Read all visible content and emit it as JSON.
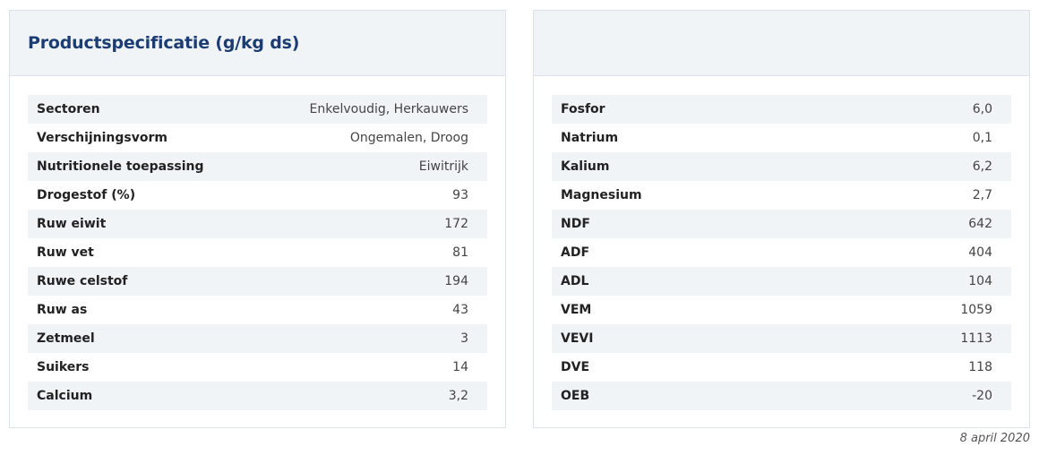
{
  "left_panel": {
    "title": "Productspecificatie (g/kg ds)",
    "rows": [
      {
        "label": "Sectoren",
        "value": "Enkelvoudig, Herkauwers"
      },
      {
        "label": "Verschijningsvorm",
        "value": "Ongemalen, Droog"
      },
      {
        "label": "Nutritionele toepassing",
        "value": "Eiwitrijk"
      },
      {
        "label": "Drogestof (%)",
        "value": "93"
      },
      {
        "label": "Ruw eiwit",
        "value": "172"
      },
      {
        "label": "Ruw vet",
        "value": "81"
      },
      {
        "label": "Ruwe celstof",
        "value": "194"
      },
      {
        "label": "Ruw as",
        "value": "43"
      },
      {
        "label": "Zetmeel",
        "value": "3"
      },
      {
        "label": "Suikers",
        "value": "14"
      },
      {
        "label": "Calcium",
        "value": "3,2"
      }
    ]
  },
  "right_panel": {
    "title": "",
    "rows": [
      {
        "label": "Fosfor",
        "value": "6,0"
      },
      {
        "label": "Natrium",
        "value": "0,1"
      },
      {
        "label": "Kalium",
        "value": "6,2"
      },
      {
        "label": "Magnesium",
        "value": "2,7"
      },
      {
        "label": "NDF",
        "value": "642"
      },
      {
        "label": "ADF",
        "value": "404"
      },
      {
        "label": "ADL",
        "value": "104"
      },
      {
        "label": "VEM",
        "value": "1059"
      },
      {
        "label": "VEVI",
        "value": "1113"
      },
      {
        "label": "DVE",
        "value": "118"
      },
      {
        "label": "OEB",
        "value": "-20"
      }
    ]
  },
  "footer": {
    "date": "8 april 2020"
  },
  "colors": {
    "title": "#1b3d73",
    "header_bg": "#f1f4f7",
    "row_alt_bg": "#f1f4f7",
    "border": "#dde2e8"
  }
}
